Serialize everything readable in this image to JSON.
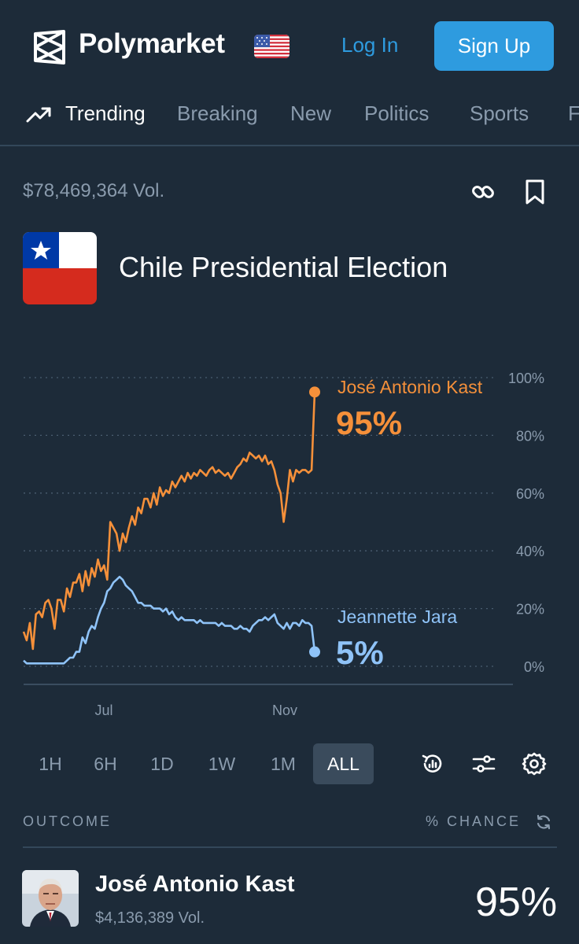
{
  "header": {
    "brand": "Polymarket",
    "login_label": "Log In",
    "signup_label": "Sign Up"
  },
  "nav": {
    "items": [
      {
        "label": "Trending",
        "active": true
      },
      {
        "label": "Breaking",
        "active": false
      },
      {
        "label": "New",
        "active": false
      },
      {
        "label": "Politics",
        "active": false
      },
      {
        "label": "Sports",
        "active": false
      },
      {
        "label": "F",
        "active": false
      }
    ]
  },
  "market": {
    "volume": "$78,469,364 Vol.",
    "title": "Chile Presidential Election"
  },
  "chart_data": {
    "type": "line",
    "x_ticks": [
      "Jul",
      "Nov"
    ],
    "y_ticks": [
      "100%",
      "80%",
      "60%",
      "40%",
      "20%",
      "0%"
    ],
    "ylim": [
      0,
      100
    ],
    "grid": true,
    "series": [
      {
        "name": "José Antonio Kast",
        "current_label": "95%",
        "color": "#f5903a",
        "values": [
          12,
          9,
          15,
          6,
          18,
          19,
          17,
          22,
          23,
          20,
          13,
          23,
          23,
          19,
          27,
          24,
          29,
          29,
          32,
          26,
          33,
          28,
          34,
          31,
          37,
          33,
          35,
          30,
          50,
          48,
          46,
          40,
          46,
          43,
          48,
          52,
          49,
          55,
          53,
          58,
          58,
          55,
          60,
          56,
          62,
          59,
          61,
          60,
          64,
          62,
          64,
          66,
          64,
          67,
          65,
          67,
          66,
          68,
          67,
          66,
          68,
          69,
          67,
          68,
          67,
          66,
          67,
          65,
          67,
          69,
          70,
          72,
          71,
          74,
          73,
          72,
          73,
          71,
          73,
          70,
          71,
          68,
          63,
          60,
          50,
          58,
          68,
          64,
          68,
          67,
          68,
          68,
          67,
          68,
          95
        ]
      },
      {
        "name": "Jeannette Jara",
        "current_label": "5%",
        "color": "#8fc3f8",
        "values": [
          2,
          1,
          1,
          1,
          1,
          1,
          1,
          1,
          1,
          1,
          1,
          1,
          1,
          1,
          2,
          3,
          3,
          5,
          5,
          10,
          8,
          12,
          14,
          13,
          17,
          20,
          22,
          26,
          27,
          29,
          30,
          31,
          30,
          28,
          27,
          26,
          24,
          22,
          22,
          21,
          21,
          21,
          20,
          20,
          20,
          19,
          20,
          18,
          19,
          17,
          16,
          17,
          16,
          16,
          16,
          16,
          15,
          16,
          15,
          15,
          15,
          15,
          15,
          14,
          15,
          14,
          14,
          14,
          13,
          13,
          14,
          13,
          13,
          12,
          14,
          15,
          16,
          16,
          17,
          16,
          17,
          18,
          15,
          14,
          13,
          15,
          13,
          15,
          15,
          14,
          16,
          15,
          15,
          14,
          5
        ]
      }
    ]
  },
  "timeframes": [
    {
      "label": "1H",
      "active": false
    },
    {
      "label": "6H",
      "active": false
    },
    {
      "label": "1D",
      "active": false
    },
    {
      "label": "1W",
      "active": false
    },
    {
      "label": "1M",
      "active": false
    },
    {
      "label": "ALL",
      "active": true
    }
  ],
  "outcomes": {
    "header_outcome": "OUTCOME",
    "header_chance": "% CHANCE",
    "rows": [
      {
        "name": "José Antonio Kast",
        "volume": "$4,136,389 Vol.",
        "chance": "95%"
      }
    ]
  },
  "colors": {
    "background": "#1d2b39",
    "accent": "#2e9bdf",
    "kast": "#f5903a",
    "jara": "#8fc3f8",
    "muted": "#8a9bad"
  },
  "icons": [
    "polymarket-logo-icon",
    "us-flag-icon",
    "trending-icon",
    "link-icon",
    "bookmark-icon",
    "chile-flag-icon",
    "history-icon",
    "sliders-icon",
    "gear-icon",
    "refresh-icon"
  ]
}
